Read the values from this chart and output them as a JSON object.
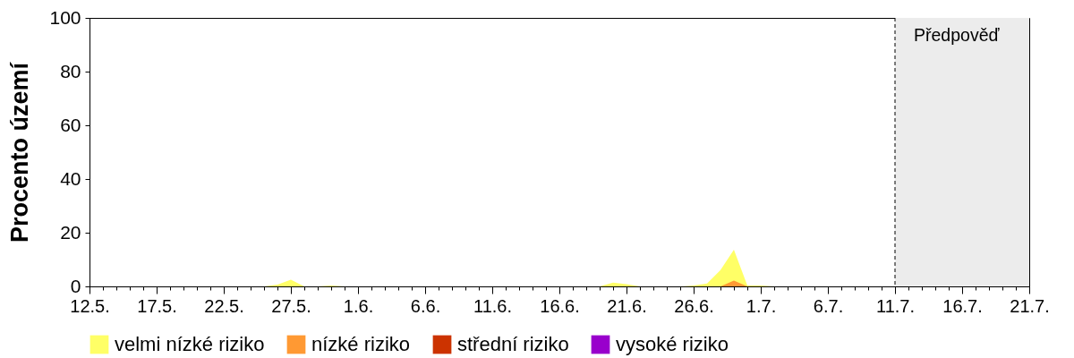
{
  "chart_data": {
    "type": "area",
    "ylabel": "Procento území",
    "x": [
      "--05-12",
      "--05-13",
      "--05-14",
      "--05-15",
      "--05-16",
      "--05-17",
      "--05-18",
      "--05-19",
      "--05-20",
      "--05-21",
      "--05-22",
      "--05-23",
      "--05-24",
      "--05-25",
      "--05-26",
      "--05-27",
      "--05-28",
      "--05-29",
      "--05-30",
      "--05-31",
      "--06-01",
      "--06-02",
      "--06-03",
      "--06-04",
      "--06-05",
      "--06-06",
      "--06-07",
      "--06-08",
      "--06-09",
      "--06-10",
      "--06-11",
      "--06-12",
      "--06-13",
      "--06-14",
      "--06-15",
      "--06-16",
      "--06-17",
      "--06-18",
      "--06-19",
      "--06-20",
      "--06-21",
      "--06-22",
      "--06-23",
      "--06-24",
      "--06-25",
      "--06-26",
      "--06-27",
      "--06-28",
      "--06-29",
      "--06-30",
      "--07-01",
      "--07-02",
      "--07-03",
      "--07-04",
      "--07-05",
      "--07-06",
      "--07-07",
      "--07-08",
      "--07-09",
      "--07-10",
      "--07-11"
    ],
    "series": [
      {
        "name": "velmi nízké riziko",
        "color": "#ffff66",
        "values": [
          0,
          0,
          0,
          0,
          0,
          0,
          0,
          0,
          0,
          0,
          0,
          0,
          0,
          0,
          0.7,
          2.5,
          0,
          0,
          0.3,
          0,
          0,
          0,
          0,
          0,
          0,
          0,
          0,
          0,
          0,
          0,
          0,
          0,
          0,
          0,
          0,
          0,
          0,
          0,
          0,
          1.4,
          0.8,
          0,
          0,
          0,
          0,
          0.3,
          1.1,
          6.1,
          13.7,
          0.3,
          0.3,
          0,
          0,
          0,
          0,
          0,
          0,
          0,
          0,
          0,
          0
        ]
      },
      {
        "name": "nízké riziko",
        "color": "#ff9933",
        "values": [
          0,
          0,
          0,
          0,
          0,
          0,
          0,
          0,
          0,
          0,
          0,
          0,
          0,
          0,
          0,
          0,
          0,
          0,
          0,
          0,
          0,
          0,
          0,
          0,
          0,
          0,
          0,
          0,
          0,
          0,
          0,
          0,
          0,
          0,
          0,
          0,
          0,
          0,
          0,
          0,
          0,
          0,
          0,
          0,
          0,
          0,
          0,
          0,
          2.2,
          0,
          0,
          0,
          0,
          0,
          0,
          0,
          0,
          0,
          0,
          0,
          0
        ]
      },
      {
        "name": "střední riziko",
        "color": "#cc3300",
        "values": [
          null,
          null,
          null,
          null,
          null,
          null,
          null,
          null,
          null,
          null,
          null,
          null,
          null,
          null,
          null,
          null,
          null,
          null,
          null,
          null,
          null,
          null,
          null,
          null,
          null,
          null,
          null,
          null,
          null,
          null,
          null,
          null,
          null,
          null,
          null,
          null,
          null,
          null,
          null,
          null,
          null,
          null,
          null,
          null,
          null,
          null,
          null,
          null,
          null,
          null,
          null,
          null,
          null,
          null,
          null,
          null,
          null,
          null,
          null,
          null,
          null
        ]
      },
      {
        "name": "vysoké riziko",
        "color": "#9900cc",
        "values": [
          null,
          null,
          null,
          null,
          null,
          null,
          null,
          null,
          null,
          null,
          null,
          null,
          null,
          null,
          null,
          null,
          null,
          null,
          null,
          null,
          null,
          null,
          null,
          null,
          null,
          null,
          null,
          null,
          null,
          null,
          null,
          null,
          null,
          null,
          null,
          null,
          null,
          null,
          null,
          null,
          null,
          null,
          null,
          null,
          null,
          null,
          null,
          null,
          null,
          null,
          null,
          null,
          null,
          null,
          null,
          null,
          null,
          null,
          null,
          null,
          null
        ]
      }
    ],
    "xlim": [
      "--05-12",
      "--07-21"
    ],
    "xticks": [
      {
        "value": "--05-12",
        "label": "12.5."
      },
      {
        "value": "--05-13",
        "label": null
      },
      {
        "value": "--05-14",
        "label": null
      },
      {
        "value": "--05-15",
        "label": null
      },
      {
        "value": "--05-16",
        "label": null
      },
      {
        "value": "--05-17",
        "label": "17.5."
      },
      {
        "value": "--05-18",
        "label": null
      },
      {
        "value": "--05-19",
        "label": null
      },
      {
        "value": "--05-20",
        "label": null
      },
      {
        "value": "--05-21",
        "label": null
      },
      {
        "value": "--05-22",
        "label": "22.5."
      },
      {
        "value": "--05-23",
        "label": null
      },
      {
        "value": "--05-24",
        "label": null
      },
      {
        "value": "--05-25",
        "label": null
      },
      {
        "value": "--05-26",
        "label": null
      },
      {
        "value": "--05-27",
        "label": "27.5."
      },
      {
        "value": "--05-28",
        "label": null
      },
      {
        "value": "--05-29",
        "label": null
      },
      {
        "value": "--05-30",
        "label": null
      },
      {
        "value": "--05-31",
        "label": null
      },
      {
        "value": "--06-01",
        "label": "1.6."
      },
      {
        "value": "--06-02",
        "label": null
      },
      {
        "value": "--06-03",
        "label": null
      },
      {
        "value": "--06-04",
        "label": null
      },
      {
        "value": "--06-05",
        "label": null
      },
      {
        "value": "--06-06",
        "label": "6.6."
      },
      {
        "value": "--06-07",
        "label": null
      },
      {
        "value": "--06-08",
        "label": null
      },
      {
        "value": "--06-09",
        "label": null
      },
      {
        "value": "--06-10",
        "label": null
      },
      {
        "value": "--06-11",
        "label": "11.6."
      },
      {
        "value": "--06-12",
        "label": null
      },
      {
        "value": "--06-13",
        "label": null
      },
      {
        "value": "--06-14",
        "label": null
      },
      {
        "value": "--06-15",
        "label": null
      },
      {
        "value": "--06-16",
        "label": "16.6."
      },
      {
        "value": "--06-17",
        "label": null
      },
      {
        "value": "--06-18",
        "label": null
      },
      {
        "value": "--06-19",
        "label": null
      },
      {
        "value": "--06-20",
        "label": null
      },
      {
        "value": "--06-21",
        "label": "21.6."
      },
      {
        "value": "--06-22",
        "label": null
      },
      {
        "value": "--06-23",
        "label": null
      },
      {
        "value": "--06-24",
        "label": null
      },
      {
        "value": "--06-25",
        "label": null
      },
      {
        "value": "--06-26",
        "label": "26.6."
      },
      {
        "value": "--06-27",
        "label": null
      },
      {
        "value": "--06-28",
        "label": null
      },
      {
        "value": "--06-29",
        "label": null
      },
      {
        "value": "--06-30",
        "label": null
      },
      {
        "value": "--07-01",
        "label": "1.7."
      },
      {
        "value": "--07-02",
        "label": null
      },
      {
        "value": "--07-03",
        "label": null
      },
      {
        "value": "--07-04",
        "label": null
      },
      {
        "value": "--07-05",
        "label": null
      },
      {
        "value": "--07-06",
        "label": "6.7."
      },
      {
        "value": "--07-07",
        "label": null
      },
      {
        "value": "--07-08",
        "label": null
      },
      {
        "value": "--07-09",
        "label": null
      },
      {
        "value": "--07-10",
        "label": null
      },
      {
        "value": "--07-11",
        "label": "11.7."
      },
      {
        "value": "--07-12",
        "label": null
      },
      {
        "value": "--07-13",
        "label": null
      },
      {
        "value": "--07-14",
        "label": null
      },
      {
        "value": "--07-15",
        "label": null
      },
      {
        "value": "--07-16",
        "label": "16.7."
      },
      {
        "value": "--07-17",
        "label": null
      },
      {
        "value": "--07-18",
        "label": null
      },
      {
        "value": "--07-19",
        "label": null
      },
      {
        "value": "--07-20",
        "label": null
      },
      {
        "value": "--07-21",
        "label": "21.7."
      }
    ],
    "ylim": [
      0,
      100
    ],
    "yticks": [
      0,
      20,
      40,
      60,
      80,
      100
    ],
    "bands": [
      {
        "axis": "x",
        "from": "--07-11",
        "to": "--07-21",
        "label": "Předpověď",
        "color": "#ececec"
      }
    ],
    "ref_lines": [
      {
        "axis": "x",
        "value": "--07-11",
        "line_style": "dashed",
        "color": "#000000"
      }
    ],
    "grid": false,
    "legend": "bottom"
  }
}
